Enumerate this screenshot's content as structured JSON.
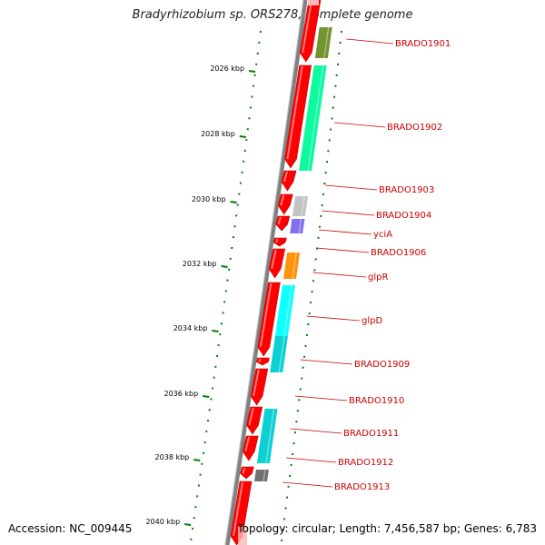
{
  "title": "Bradyrhizobium sp. ORS278, complete genome",
  "accession_label": "Accession: NC_009445",
  "info_label": "Topology: circular; Length: 7,456,587 bp; Genes: 6,783",
  "ticks": [
    {
      "label": "2026 kbp",
      "kbp": 2026
    },
    {
      "label": "2028 kbp",
      "kbp": 2028
    },
    {
      "label": "2030 kbp",
      "kbp": 2030
    },
    {
      "label": "2032 kbp",
      "kbp": 2032
    },
    {
      "label": "2034 kbp",
      "kbp": 2034
    },
    {
      "label": "2036 kbp",
      "kbp": 2036
    },
    {
      "label": "2038 kbp",
      "kbp": 2038
    },
    {
      "label": "2040 kbp",
      "kbp": 2040
    }
  ],
  "genes": [
    {
      "label": "BRADO1901",
      "color": "#6b8e23"
    },
    {
      "label": "BRADO1902",
      "color": "#00fa9a"
    },
    {
      "label": "BRADO1903",
      "color": "#ffffff"
    },
    {
      "label": "BRADO1904",
      "color": "#c0c0c0"
    },
    {
      "label": "yciA",
      "color": "#7b68ee"
    },
    {
      "label": "BRADO1906",
      "color": "#ffffff"
    },
    {
      "label": "glpR",
      "color": "#ff8c00"
    },
    {
      "label": "glpD",
      "color": "#00ffff"
    },
    {
      "label": "BRADO1909",
      "color": "#00ced1"
    },
    {
      "label": "BRADO1910",
      "color": "#ffffff"
    },
    {
      "label": "BRADO1911",
      "color": "#00ced1"
    },
    {
      "label": "BRADO1912",
      "color": "#00ced1"
    },
    {
      "label": "BRADO1913",
      "color": "#696969"
    }
  ],
  "colors": {
    "backbone": "#808080",
    "cds": "#ff0000",
    "label": "#cc0000",
    "tick": "#008000"
  }
}
